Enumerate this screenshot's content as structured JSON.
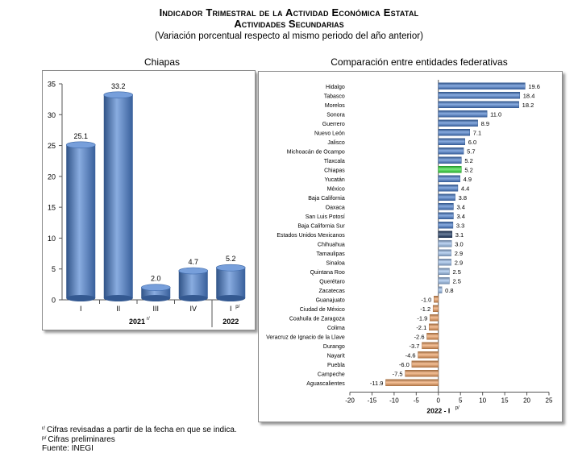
{
  "header": {
    "title1": "Indicador Trimestral de la Actividad Económica Estatal",
    "title2": "Actividades Secundarias",
    "subtitle": "(Variación porcentual respecto al mismo periodo del año anterior)"
  },
  "colors": {
    "bar_blue": "#4a7fcf",
    "bar_green": "#33e33a",
    "bar_navy": "#1f3b66",
    "bar_lightblue": "#9ec1ee",
    "bar_orange": "#f0a060"
  },
  "chart_data": [
    {
      "type": "bar",
      "title": "Chiapas",
      "categories": [
        "I",
        "II",
        "III",
        "IV",
        "I"
      ],
      "category_superscripts": [
        "",
        "",
        "",
        "",
        "p/"
      ],
      "values": [
        25.1,
        33.2,
        2.0,
        4.7,
        5.2
      ],
      "value_labels": [
        "25.1",
        "33.2",
        "2.0",
        "4.7",
        "5.2"
      ],
      "year_groups": [
        {
          "label": "2021",
          "superscript": "r/"
        },
        {
          "label": "2022",
          "superscript": ""
        }
      ],
      "ylim": [
        0,
        35
      ],
      "yticks": [
        "0",
        "5",
        "10",
        "15",
        "20",
        "25",
        "30",
        "35"
      ],
      "grid": false
    },
    {
      "type": "bar",
      "orientation": "horizontal",
      "title": "Comparación entre entidades federativas",
      "xlabel": "2022 - I",
      "xlabel_superscript": "p/",
      "xlim": [
        -20,
        25
      ],
      "xticks": [
        "-20",
        "-15",
        "-10",
        "-5",
        "0",
        "5",
        "10",
        "15",
        "20",
        "25"
      ],
      "grid": false,
      "categories": [
        "Hidalgo",
        "Tabasco",
        "Morelos",
        "Sonora",
        "Guerrero",
        "Nuevo León",
        "Jalisco",
        "Michoacán de Ocampo",
        "Tlaxcala",
        "Chiapas",
        "Yucatán",
        "México",
        "Baja California",
        "Oaxaca",
        "San Luis Potosí",
        "Baja California Sur",
        "Estados Unidos Mexicanos",
        "Chihuahua",
        "Tamaulipas",
        "Sinaloa",
        "Quintana Roo",
        "Querétaro",
        "Zacatecas",
        "Guanajuato",
        "Ciudad de México",
        "Coahuila de Zaragoza",
        "Colima",
        "Veracruz de Ignacio de la Llave",
        "Durango",
        "Nayarit",
        "Puebla",
        "Campeche",
        "Aguascalientes"
      ],
      "values": [
        19.6,
        18.4,
        18.2,
        11.0,
        8.9,
        7.1,
        6.0,
        5.7,
        5.2,
        5.2,
        4.9,
        4.4,
        3.8,
        3.4,
        3.4,
        3.3,
        3.1,
        3.0,
        2.9,
        2.9,
        2.5,
        2.5,
        0.8,
        -1.0,
        -1.2,
        -1.9,
        -2.1,
        -2.6,
        -3.7,
        -4.6,
        -6.0,
        -7.5,
        -11.9
      ],
      "value_labels": [
        "19.6",
        "18.4",
        "18.2",
        "11.0",
        "8.9",
        "7.1",
        "6.0",
        "5.7",
        "5.2",
        "5.2",
        "4.9",
        "4.4",
        "3.8",
        "3.4",
        "3.4",
        "3.3",
        "3.1",
        "3.0",
        "2.9",
        "2.9",
        "2.5",
        "2.5",
        "0.8",
        "-1.0",
        "-1.2",
        "-1.9",
        "-2.1",
        "-2.6",
        "-3.7",
        "-4.6",
        "-6.0",
        "-7.5",
        "-11.9"
      ],
      "bar_colors": [
        "blue",
        "blue",
        "blue",
        "blue",
        "blue",
        "blue",
        "blue",
        "blue",
        "blue",
        "green",
        "blue",
        "blue",
        "blue",
        "blue",
        "blue",
        "blue",
        "navy",
        "lightblue",
        "lightblue",
        "lightblue",
        "lightblue",
        "lightblue",
        "lightblue",
        "orange",
        "orange",
        "orange",
        "orange",
        "orange",
        "orange",
        "orange",
        "orange",
        "orange",
        "orange"
      ]
    }
  ],
  "notes": {
    "revised_sup": "r/",
    "revised": "Cifras revisadas a partir de la fecha en que se indica.",
    "prelim_sup": "p/",
    "prelim": "Cifras preliminares",
    "source": "Fuente: INEGI"
  }
}
